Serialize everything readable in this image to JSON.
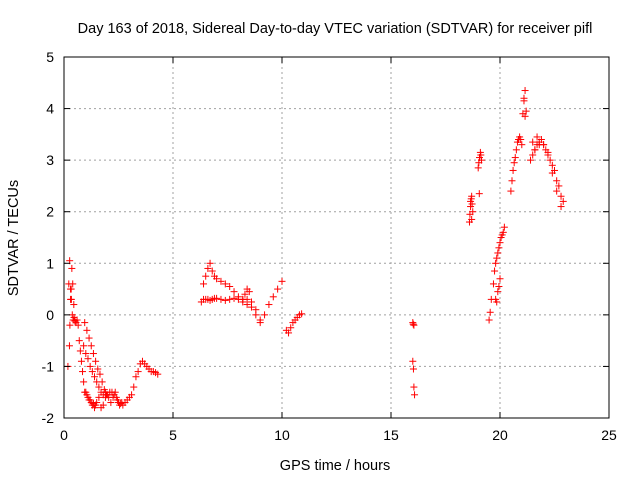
{
  "chart_data": {
    "type": "scatter",
    "title": "Day 163 of 2018, Sidereal Day-to-day VTEC variation (SDTVAR) for receiver pifl",
    "xlabel": "GPS time / hours",
    "ylabel": "SDTVAR / TECUs",
    "xlim": [
      0,
      25
    ],
    "ylim": [
      -2,
      5
    ],
    "xticks": [
      "0",
      "5",
      "10",
      "15",
      "20",
      "25"
    ],
    "yticks": [
      "-2",
      "-1",
      "0",
      "1",
      "2",
      "3",
      "4",
      "5"
    ],
    "grid": true,
    "marker": "+",
    "colors": {
      "series": "#ff0000",
      "grid": "#a0a0a0",
      "axis": "#000000"
    },
    "series": [
      {
        "name": "SDTVAR",
        "x": [
          0.18,
          0.22,
          0.26,
          0.3,
          0.34,
          0.38,
          0.42,
          0.46,
          0.5,
          0.55,
          0.6,
          0.65,
          0.7,
          0.75,
          0.8,
          0.85,
          0.9,
          0.95,
          1.0,
          1.05,
          1.1,
          1.15,
          1.2,
          1.25,
          1.3,
          1.35,
          1.4,
          1.45,
          1.5,
          1.6,
          1.7,
          1.8,
          1.9,
          0.25,
          0.27,
          0.3,
          0.33,
          0.36,
          0.4,
          0.45,
          0.5,
          0.9,
          1.0,
          1.1,
          1.2,
          1.3,
          1.4,
          1.5,
          1.6,
          1.7,
          1.8,
          1.9,
          2.0,
          2.1,
          2.2,
          2.3,
          2.4,
          2.5,
          2.6,
          2.7,
          2.8,
          2.9,
          3.0,
          3.1,
          0.95,
          1.05,
          1.15,
          1.25,
          1.35,
          1.45,
          1.55,
          1.65,
          1.75,
          1.85,
          1.95,
          2.05,
          2.15,
          2.25,
          2.35,
          2.45,
          2.55,
          2.65,
          3.2,
          3.3,
          3.4,
          3.5,
          3.6,
          3.7,
          3.8,
          3.9,
          4.0,
          4.1,
          4.2,
          4.3,
          6.3,
          6.4,
          6.5,
          6.6,
          6.7,
          6.8,
          6.9,
          7.0,
          7.2,
          7.4,
          7.6,
          7.8,
          8.0,
          8.2,
          8.4,
          8.6,
          8.8,
          9.0,
          9.2,
          9.4,
          9.6,
          9.8,
          10.0,
          6.4,
          6.5,
          6.6,
          6.7,
          6.8,
          6.9,
          7.0,
          7.2,
          7.4,
          7.6,
          7.8,
          8.0,
          8.2,
          8.4,
          8.6,
          8.8,
          9.0,
          8.2,
          8.3,
          8.4,
          8.5,
          10.2,
          10.3,
          10.4,
          10.5,
          10.6,
          10.7,
          10.8,
          10.9,
          16.0,
          16.02,
          16.05,
          16.0,
          16.03,
          16.05,
          16.08,
          18.6,
          18.62,
          18.65,
          18.68,
          18.7,
          18.72,
          18.75,
          18.7,
          18.65,
          19.0,
          19.03,
          19.06,
          19.1,
          19.12,
          19.15,
          19.05,
          19.5,
          19.55,
          19.6,
          19.7,
          19.75,
          19.8,
          19.85,
          19.9,
          19.95,
          20.0,
          20.05,
          20.1,
          20.15,
          20.2,
          19.8,
          19.85,
          19.9,
          19.95,
          20.0,
          20.5,
          20.55,
          20.6,
          20.65,
          20.7,
          20.75,
          20.8,
          20.85,
          20.9,
          20.95,
          21.0,
          21.05,
          21.1,
          21.15,
          21.2,
          21.1,
          21.15,
          21.4,
          21.5,
          21.6,
          21.7,
          21.8,
          21.9,
          22.0,
          22.1,
          22.2,
          22.3,
          22.4,
          22.5,
          22.6,
          22.7,
          22.8,
          22.9,
          21.5,
          21.6,
          21.7,
          21.8,
          22.0,
          22.2,
          22.4,
          22.6,
          22.8
        ],
        "y": [
          -1.0,
          0.6,
          1.05,
          0.5,
          0.3,
          0.0,
          -0.1,
          -0.05,
          -0.12,
          -0.15,
          -0.1,
          -0.2,
          -0.5,
          -0.7,
          -0.9,
          -1.1,
          -1.3,
          -1.5,
          -1.5,
          -1.55,
          -1.6,
          -1.65,
          -1.65,
          -1.7,
          -1.75,
          -1.72,
          -1.8,
          -1.75,
          -1.7,
          -1.6,
          -1.8,
          -1.75,
          -1.5,
          -0.6,
          -0.2,
          0.3,
          0.5,
          0.9,
          0.6,
          0.2,
          -0.1,
          -0.6,
          -0.75,
          -0.85,
          -1.0,
          -1.1,
          -1.2,
          -1.3,
          -1.4,
          -1.5,
          -1.55,
          -1.6,
          -1.55,
          -1.5,
          -1.5,
          -1.55,
          -1.6,
          -1.7,
          -1.72,
          -1.75,
          -1.7,
          -1.65,
          -1.6,
          -1.55,
          -0.15,
          -0.3,
          -0.45,
          -0.6,
          -0.75,
          -0.9,
          -1.05,
          -1.15,
          -1.3,
          -1.45,
          -1.55,
          -1.6,
          -1.7,
          -1.6,
          -1.5,
          -1.65,
          -1.75,
          -1.7,
          -1.4,
          -1.2,
          -1.1,
          -0.95,
          -0.9,
          -0.95,
          -1.0,
          -1.05,
          -1.1,
          -1.1,
          -1.12,
          -1.15,
          0.25,
          0.3,
          0.3,
          0.3,
          0.28,
          0.3,
          0.32,
          0.32,
          0.3,
          0.28,
          0.3,
          0.32,
          0.3,
          0.3,
          0.3,
          0.25,
          0.1,
          -0.15,
          0.0,
          0.2,
          0.35,
          0.5,
          0.65,
          0.6,
          0.75,
          0.9,
          1.0,
          0.85,
          0.75,
          0.7,
          0.65,
          0.6,
          0.55,
          0.45,
          0.35,
          0.25,
          0.2,
          0.15,
          0.0,
          -0.1,
          0.3,
          0.4,
          0.5,
          0.45,
          -0.3,
          -0.35,
          -0.25,
          -0.15,
          -0.1,
          -0.05,
          0.0,
          0.02,
          -0.15,
          -0.18,
          -0.2,
          -0.9,
          -1.05,
          -1.4,
          -1.55,
          1.8,
          1.95,
          2.1,
          2.25,
          2.3,
          2.15,
          2.0,
          1.85,
          2.2,
          2.85,
          2.95,
          3.05,
          3.15,
          3.1,
          3.0,
          2.35,
          -0.1,
          0.05,
          0.3,
          0.6,
          0.85,
          1.0,
          1.1,
          1.2,
          1.3,
          1.4,
          1.5,
          1.55,
          1.6,
          1.7,
          0.3,
          0.25,
          0.45,
          0.55,
          0.7,
          2.4,
          2.6,
          2.8,
          2.95,
          3.05,
          3.2,
          3.35,
          3.4,
          3.45,
          3.4,
          3.3,
          3.9,
          4.15,
          4.35,
          3.95,
          4.2,
          3.85,
          3.0,
          3.1,
          3.2,
          3.3,
          3.35,
          3.4,
          3.3,
          3.2,
          3.1,
          3.0,
          2.9,
          2.8,
          2.6,
          2.5,
          2.3,
          2.2,
          3.35,
          3.2,
          3.45,
          3.3,
          3.3,
          3.15,
          2.75,
          2.4,
          2.1
        ]
      }
    ]
  }
}
